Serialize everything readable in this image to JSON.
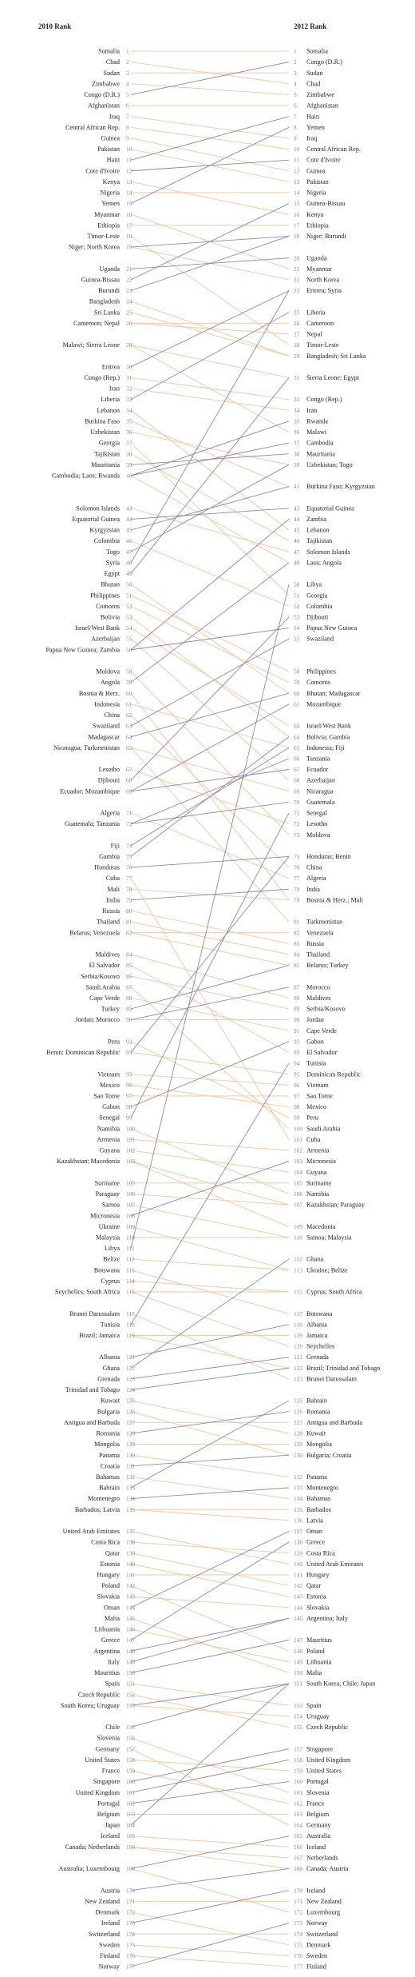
{
  "chart_data": {
    "type": "slope",
    "title": "",
    "left_header": "2010 Rank",
    "right_header": "2012 Rank",
    "colors": {
      "improved": "#8a7fa3",
      "worsened": "#f0c9a4",
      "text": "#222222",
      "rank": "#888888"
    },
    "countries": [
      {
        "name": "Somalia",
        "r2010": 1,
        "r2012": 1
      },
      {
        "name": "Chad",
        "r2010": 2,
        "r2012": 4
      },
      {
        "name": "Sudan",
        "r2010": 3,
        "r2012": 3
      },
      {
        "name": "Zimbabwe",
        "r2010": 4,
        "r2012": 5
      },
      {
        "name": "Congo (D.R.)",
        "r2010": 5,
        "r2012": 2
      },
      {
        "name": "Afghanistan",
        "r2010": 6,
        "r2012": 6
      },
      {
        "name": "Iraq",
        "r2010": 7,
        "r2012": 9
      },
      {
        "name": "Central African Rep.",
        "r2010": 8,
        "r2012": 10
      },
      {
        "name": "Guinea",
        "r2010": 9,
        "r2012": 12
      },
      {
        "name": "Pakistan",
        "r2010": 10,
        "r2012": 13
      },
      {
        "name": "Haiti",
        "r2010": 11,
        "r2012": 7
      },
      {
        "name": "Cote d'Ivoire",
        "r2010": 12,
        "r2012": 11
      },
      {
        "name": "Kenya",
        "r2010": 13,
        "r2012": 16
      },
      {
        "name": "Nigeria",
        "r2010": 14,
        "r2012": 14
      },
      {
        "name": "Yemen",
        "r2010": 15,
        "r2012": 8
      },
      {
        "name": "Myanmar",
        "r2010": 16,
        "r2012": 21
      },
      {
        "name": "Ethiopia",
        "r2010": 17,
        "r2012": 17
      },
      {
        "name": "Timor-Leste",
        "r2010": 18,
        "r2012": 28
      },
      {
        "name": "Niger",
        "r2010": 19,
        "r2012": 18
      },
      {
        "name": "North Korea",
        "r2010": 19,
        "r2012": 22
      },
      {
        "name": "Uganda",
        "r2010": 21,
        "r2012": 20
      },
      {
        "name": "Guinea-Bissau",
        "r2010": 22,
        "r2012": 15
      },
      {
        "name": "Burundi",
        "r2010": 23,
        "r2012": 18
      },
      {
        "name": "Bangladesh",
        "r2010": 24,
        "r2012": 29
      },
      {
        "name": "Sri Lanka",
        "r2010": 25,
        "r2012": 29
      },
      {
        "name": "Cameroon",
        "r2010": 26,
        "r2012": 26
      },
      {
        "name": "Nepal",
        "r2010": 26,
        "r2012": 27
      },
      {
        "name": "Malawi",
        "r2010": 28,
        "r2012": 36
      },
      {
        "name": "Sierra Leone",
        "r2010": 28,
        "r2012": 31
      },
      {
        "name": "Eritrea",
        "r2010": 30,
        "r2012": 23
      },
      {
        "name": "Congo (Rep.)",
        "r2010": 31,
        "r2012": 33
      },
      {
        "name": "Iran",
        "r2010": 32,
        "r2012": 34
      },
      {
        "name": "Liberia",
        "r2010": 33,
        "r2012": 25
      },
      {
        "name": "Lebanon",
        "r2010": 34,
        "r2012": 45
      },
      {
        "name": "Burkina Faso",
        "r2010": 35,
        "r2012": 41
      },
      {
        "name": "Uzbekistan",
        "r2010": 36,
        "r2012": 39
      },
      {
        "name": "Georgia",
        "r2010": 37,
        "r2012": 51
      },
      {
        "name": "Tajikistan",
        "r2010": 38,
        "r2012": 46
      },
      {
        "name": "Mauritania",
        "r2010": 39,
        "r2012": 38
      },
      {
        "name": "Cambodia",
        "r2010": 40,
        "r2012": 37
      },
      {
        "name": "Laos",
        "r2010": 40,
        "r2012": 48
      },
      {
        "name": "Rwanda",
        "r2010": 40,
        "r2012": 35
      },
      {
        "name": "Solomon Islands",
        "r2010": 43,
        "r2012": 47
      },
      {
        "name": "Equatorial Guinea",
        "r2010": 44,
        "r2012": 43
      },
      {
        "name": "Kyrgyzstan",
        "r2010": 45,
        "r2012": 41
      },
      {
        "name": "Colombia",
        "r2010": 46,
        "r2012": 52
      },
      {
        "name": "Togo",
        "r2010": 47,
        "r2012": 39
      },
      {
        "name": "Syria",
        "r2010": 48,
        "r2012": 23
      },
      {
        "name": "Egypt",
        "r2010": 49,
        "r2012": 31
      },
      {
        "name": "Bhutan",
        "r2010": 50,
        "r2012": 60
      },
      {
        "name": "Philippines",
        "r2010": 51,
        "r2012": 58
      },
      {
        "name": "Comoros",
        "r2010": 52,
        "r2012": 59
      },
      {
        "name": "Bolivia",
        "r2010": 53,
        "r2012": 64
      },
      {
        "name": "Israel/West Bank",
        "r2010": 54,
        "r2012": 63
      },
      {
        "name": "Azerbaijan",
        "r2010": 55,
        "r2012": 68
      },
      {
        "name": "Papua New Guinea",
        "r2010": 56,
        "r2012": 54
      },
      {
        "name": "Zambia",
        "r2010": 56,
        "r2012": 44
      },
      {
        "name": "Moldova",
        "r2010": 58,
        "r2012": 73
      },
      {
        "name": "Angola",
        "r2010": 59,
        "r2012": 48
      },
      {
        "name": "Bosnia & Herz.",
        "r2010": 60,
        "r2012": 79
      },
      {
        "name": "Indonesia",
        "r2010": 61,
        "r2012": 65
      },
      {
        "name": "China",
        "r2010": 62,
        "r2012": 76
      },
      {
        "name": "Swaziland",
        "r2010": 63,
        "r2012": 55
      },
      {
        "name": "Madagascar",
        "r2010": 64,
        "r2012": 60
      },
      {
        "name": "Nicaragua",
        "r2010": 65,
        "r2012": 69
      },
      {
        "name": "Turkmenistan",
        "r2010": 65,
        "r2012": 81
      },
      {
        "name": "Lesotho",
        "r2010": 67,
        "r2012": 72
      },
      {
        "name": "Djibouti",
        "r2010": 68,
        "r2012": 53
      },
      {
        "name": "Ecuador",
        "r2010": 69,
        "r2012": 67
      },
      {
        "name": "Mozambique",
        "r2010": 69,
        "r2012": 61
      },
      {
        "name": "Algeria",
        "r2010": 71,
        "r2012": 77
      },
      {
        "name": "Guatemala",
        "r2010": 72,
        "r2012": 70
      },
      {
        "name": "Tanzania",
        "r2010": 72,
        "r2012": 66
      },
      {
        "name": "Fiji",
        "r2010": 74,
        "r2012": 65
      },
      {
        "name": "Gambia",
        "r2010": 75,
        "r2012": 64
      },
      {
        "name": "Honduras",
        "r2010": 76,
        "r2012": 75
      },
      {
        "name": "Cuba",
        "r2010": 77,
        "r2012": 101
      },
      {
        "name": "Mali",
        "r2010": 78,
        "r2012": 79
      },
      {
        "name": "India",
        "r2010": 79,
        "r2012": 78
      },
      {
        "name": "Russia",
        "r2010": 80,
        "r2012": 83
      },
      {
        "name": "Thailand",
        "r2010": 81,
        "r2012": 84
      },
      {
        "name": "Belarus",
        "r2010": 82,
        "r2012": 85
      },
      {
        "name": "Venezuela",
        "r2010": 82,
        "r2012": 82
      },
      {
        "name": "Maldives",
        "r2010": 84,
        "r2012": 88
      },
      {
        "name": "El Salvador",
        "r2010": 85,
        "r2012": 93
      },
      {
        "name": "Serbia/Kosovo",
        "r2010": 86,
        "r2012": 89
      },
      {
        "name": "Saudi Arabia",
        "r2010": 87,
        "r2012": 100
      },
      {
        "name": "Cape Verde",
        "r2010": 88,
        "r2012": 91
      },
      {
        "name": "Turkey",
        "r2010": 89,
        "r2012": 85
      },
      {
        "name": "Jordan",
        "r2010": 90,
        "r2012": 90
      },
      {
        "name": "Morocco",
        "r2010": 90,
        "r2012": 87
      },
      {
        "name": "Peru",
        "r2010": 92,
        "r2012": 99
      },
      {
        "name": "Benin",
        "r2010": 93,
        "r2012": 75
      },
      {
        "name": "Dominican Republic",
        "r2010": 93,
        "r2012": 95
      },
      {
        "name": "Vietnam",
        "r2010": 95,
        "r2012": 96
      },
      {
        "name": "Mexico",
        "r2010": 96,
        "r2012": 98
      },
      {
        "name": "Sao Tome",
        "r2010": 97,
        "r2012": 97
      },
      {
        "name": "Gabon",
        "r2010": 98,
        "r2012": 92
      },
      {
        "name": "Senegal",
        "r2010": 99,
        "r2012": 71
      },
      {
        "name": "Namibia",
        "r2010": 100,
        "r2012": 106
      },
      {
        "name": "Armenia",
        "r2010": 101,
        "r2012": 102
      },
      {
        "name": "Guyana",
        "r2010": 102,
        "r2012": 104
      },
      {
        "name": "Kazakhstan",
        "r2010": 103,
        "r2012": 107
      },
      {
        "name": "Macedonia",
        "r2010": 103,
        "r2012": 109
      },
      {
        "name": "Suriname",
        "r2010": 105,
        "r2012": 105
      },
      {
        "name": "Paraguay",
        "r2010": 106,
        "r2012": 107
      },
      {
        "name": "Samoa",
        "r2010": 107,
        "r2012": 110
      },
      {
        "name": "Micronesia",
        "r2010": 108,
        "r2012": 103
      },
      {
        "name": "Ukraine",
        "r2010": 109,
        "r2012": 113
      },
      {
        "name": "Malaysia",
        "r2010": 110,
        "r2012": 110
      },
      {
        "name": "Libya",
        "r2010": 111,
        "r2012": 50
      },
      {
        "name": "Belize",
        "r2010": 112,
        "r2012": 113
      },
      {
        "name": "Botswana",
        "r2010": 113,
        "r2012": 117
      },
      {
        "name": "Cyprus",
        "r2010": 114,
        "r2012": 115
      },
      {
        "name": "Seychelles",
        "r2010": 115,
        "r2012": 120
      },
      {
        "name": "South Africa",
        "r2010": 115,
        "r2012": 115
      },
      {
        "name": "Brunei Darussalam",
        "r2010": 117,
        "r2012": 123
      },
      {
        "name": "Tunisia",
        "r2010": 118,
        "r2012": 94
      },
      {
        "name": "Brazil",
        "r2010": 119,
        "r2012": 122
      },
      {
        "name": "Jamaica",
        "r2010": 119,
        "r2012": 119
      },
      {
        "name": "Albania",
        "r2010": 121,
        "r2012": 118
      },
      {
        "name": "Ghana",
        "r2010": 122,
        "r2012": 112
      },
      {
        "name": "Grenada",
        "r2010": 123,
        "r2012": 121
      },
      {
        "name": "Trinidad and Tobago",
        "r2010": 124,
        "r2012": 122
      },
      {
        "name": "Kuwait",
        "r2010": 125,
        "r2012": 128
      },
      {
        "name": "Bulgaria",
        "r2010": 126,
        "r2012": 130
      },
      {
        "name": "Antigua and Barbuda",
        "r2010": 127,
        "r2012": 127
      },
      {
        "name": "Romania",
        "r2010": 128,
        "r2012": 126
      },
      {
        "name": "Mongolia",
        "r2010": 129,
        "r2012": 129
      },
      {
        "name": "Panama",
        "r2010": 130,
        "r2012": 132
      },
      {
        "name": "Croatia",
        "r2010": 131,
        "r2012": 130
      },
      {
        "name": "Bahamas",
        "r2010": 132,
        "r2012": 134
      },
      {
        "name": "Bahrain",
        "r2010": 133,
        "r2012": 125
      },
      {
        "name": "Montenegro",
        "r2010": 134,
        "r2012": 133
      },
      {
        "name": "Barbados",
        "r2010": 135,
        "r2012": 135
      },
      {
        "name": "Latvia",
        "r2010": 135,
        "r2012": 136
      },
      {
        "name": "United Arab Emirates",
        "r2010": 137,
        "r2012": 140
      },
      {
        "name": "Costa Rica",
        "r2010": 138,
        "r2012": 139
      },
      {
        "name": "Qatar",
        "r2010": 139,
        "r2012": 142
      },
      {
        "name": "Estonia",
        "r2010": 140,
        "r2012": 143
      },
      {
        "name": "Hungary",
        "r2010": 141,
        "r2012": 141
      },
      {
        "name": "Poland",
        "r2010": 142,
        "r2012": 148
      },
      {
        "name": "Slovakia",
        "r2010": 143,
        "r2012": 144
      },
      {
        "name": "Oman",
        "r2010": 144,
        "r2012": 137
      },
      {
        "name": "Malta",
        "r2010": 145,
        "r2012": 150
      },
      {
        "name": "Lithuania",
        "r2010": 146,
        "r2012": 149
      },
      {
        "name": "Greece",
        "r2010": 147,
        "r2012": 138
      },
      {
        "name": "Argentina",
        "r2010": 148,
        "r2012": 145
      },
      {
        "name": "Italy",
        "r2010": 149,
        "r2012": 145
      },
      {
        "name": "Mauritius",
        "r2010": 150,
        "r2012": 147
      },
      {
        "name": "Spain",
        "r2010": 151,
        "r2012": 153
      },
      {
        "name": "Czech Republic",
        "r2010": 152,
        "r2012": 155
      },
      {
        "name": "South Korea",
        "r2010": 153,
        "r2012": 151
      },
      {
        "name": "Uruguay",
        "r2010": 153,
        "r2012": 154
      },
      {
        "name": "Chile",
        "r2010": 155,
        "r2012": 151
      },
      {
        "name": "Slovenia",
        "r2010": 156,
        "r2012": 161
      },
      {
        "name": "Germany",
        "r2010": 157,
        "r2012": 164
      },
      {
        "name": "United States",
        "r2010": 158,
        "r2012": 159
      },
      {
        "name": "France",
        "r2010": 159,
        "r2012": 162
      },
      {
        "name": "Singapore",
        "r2010": 160,
        "r2012": 157
      },
      {
        "name": "United Kingdom",
        "r2010": 161,
        "r2012": 158
      },
      {
        "name": "Portugal",
        "r2010": 162,
        "r2012": 160
      },
      {
        "name": "Belgium",
        "r2010": 163,
        "r2012": 163
      },
      {
        "name": "Japan",
        "r2010": 164,
        "r2012": 151
      },
      {
        "name": "Iceland",
        "r2010": 165,
        "r2012": 166
      },
      {
        "name": "Canada",
        "r2010": 166,
        "r2012": 168
      },
      {
        "name": "Netherlands",
        "r2010": 166,
        "r2012": 167
      },
      {
        "name": "Australia",
        "r2010": 168,
        "r2012": 165
      },
      {
        "name": "Luxembourg",
        "r2010": 168,
        "r2012": 172
      },
      {
        "name": "Austria",
        "r2010": 170,
        "r2012": 168
      },
      {
        "name": "New Zealand",
        "r2010": 171,
        "r2012": 171
      },
      {
        "name": "Denmark",
        "r2010": 172,
        "r2012": 175
      },
      {
        "name": "Ireland",
        "r2010": 173,
        "r2012": 170
      },
      {
        "name": "Switzerland",
        "r2010": 174,
        "r2012": 174
      },
      {
        "name": "Sweden",
        "r2010": 175,
        "r2012": 176
      },
      {
        "name": "Finland",
        "r2010": 176,
        "r2012": 177
      },
      {
        "name": "Norway",
        "r2010": 177,
        "r2012": 173
      }
    ]
  }
}
